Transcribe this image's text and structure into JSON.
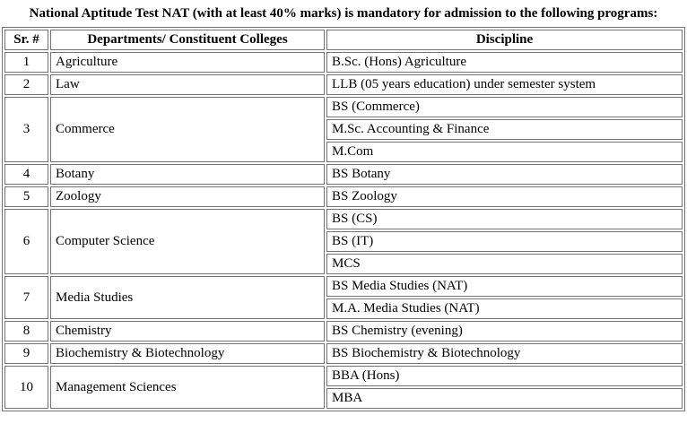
{
  "title": "National Aptitude Test NAT (with at least 40% marks) is mandatory for admission to the following programs:",
  "table": {
    "headers": [
      "Sr. #",
      "Departments/ Constituent Colleges",
      "Discipline"
    ],
    "rows": [
      {
        "sr": "1",
        "department": "Agriculture",
        "disciplines": [
          "B.Sc. (Hons) Agriculture"
        ]
      },
      {
        "sr": "2",
        "department": "Law",
        "disciplines": [
          "LLB (05 years education) under semester system"
        ]
      },
      {
        "sr": "3",
        "department": "Commerce",
        "disciplines": [
          "BS (Commerce)",
          "M.Sc. Accounting & Finance",
          "M.Com"
        ]
      },
      {
        "sr": "4",
        "department": "Botany",
        "disciplines": [
          "BS Botany"
        ]
      },
      {
        "sr": "5",
        "department": "Zoology",
        "disciplines": [
          "BS Zoology"
        ]
      },
      {
        "sr": "6",
        "department": "Computer Science",
        "disciplines": [
          "BS (CS)",
          "BS (IT)",
          "MCS"
        ]
      },
      {
        "sr": "7",
        "department": "Media Studies",
        "disciplines": [
          "BS Media Studies (NAT)",
          "M.A. Media Studies (NAT)"
        ]
      },
      {
        "sr": "8",
        "department": "Chemistry",
        "disciplines": [
          "BS Chemistry (evening)"
        ]
      },
      {
        "sr": "9",
        "department": "Biochemistry & Biotechnology",
        "disciplines": [
          "BS Biochemistry & Biotechnology"
        ]
      },
      {
        "sr": "10",
        "department": "Management Sciences",
        "disciplines": [
          "BBA (Hons)",
          "MBA"
        ]
      }
    ]
  },
  "colors": {
    "border": "#737373",
    "background": "#ffffff",
    "text": "#000000"
  }
}
